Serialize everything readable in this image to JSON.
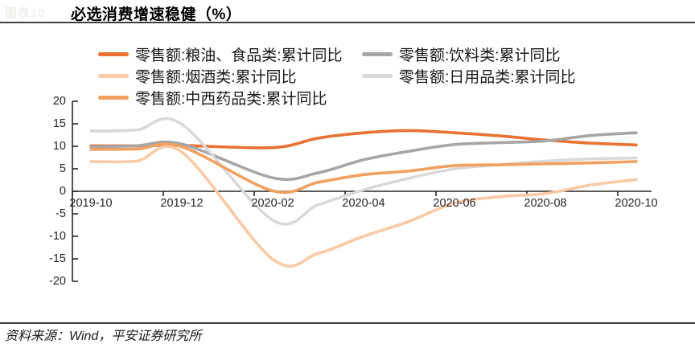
{
  "page": {
    "faint_caption": "图表10",
    "title": "必选消费增速稳健（%）",
    "source": "资料来源：Wind，平安证券研究所"
  },
  "chart_data": {
    "type": "line",
    "title": "必选消费增速稳健（%）",
    "x": [
      "2019-10",
      "2019-11",
      "2019-12",
      "2020-01",
      "2020-02",
      "2020-03",
      "2020-04",
      "2020-05",
      "2020-06",
      "2020-07",
      "2020-08",
      "2020-09",
      "2020-10"
    ],
    "xtick_labels": [
      "2019-10",
      "2019-12",
      "2020-02",
      "2020-04",
      "2020-06",
      "2020-08",
      "2020-10"
    ],
    "ytick_labels": [
      "20",
      "15",
      "10",
      "5",
      "0",
      "-5",
      "-10",
      "-15",
      "-20"
    ],
    "ylim": [
      -20,
      20
    ],
    "ytick_step": 5,
    "grid": false,
    "legend_position": "top",
    "line_smoothing": true,
    "axis_color": "#262626",
    "note": "2020-01 has no data point (Jan-Feb combined in cumulative YoY); line connects 2019-12 to 2020-02",
    "series": [
      {
        "name": "零售额:粮油、食品类:累计同比",
        "color": "#E97132",
        "values": [
          10.1,
          10.1,
          10.2,
          null,
          9.7,
          11.8,
          13.0,
          13.5,
          13.0,
          12.3,
          11.4,
          10.7,
          10.3
        ]
      },
      {
        "name": "零售额:饮料类:累计同比",
        "color": "#A6A6A6",
        "values": [
          9.9,
          10.1,
          10.5,
          null,
          3.0,
          4.1,
          7.0,
          8.9,
          10.4,
          10.8,
          11.2,
          12.4,
          13.0
        ]
      },
      {
        "name": "零售额:烟酒类:累计同比",
        "color": "#FAC9A6",
        "values": [
          6.6,
          6.7,
          8.7,
          null,
          -15.1,
          -13.8,
          -10.0,
          -6.7,
          -2.6,
          -1.2,
          -0.5,
          1.4,
          2.6
        ]
      },
      {
        "name": "零售额:日用品类:累计同比",
        "color": "#D9D9D9",
        "values": [
          13.4,
          13.6,
          14.9,
          null,
          -6.4,
          -3.0,
          0.3,
          2.9,
          5.0,
          5.9,
          6.7,
          7.2,
          7.4
        ]
      },
      {
        "name": "零售额:中西药品类:累计同比",
        "color": "#F2A05F",
        "values": [
          9.3,
          9.4,
          9.9,
          null,
          0.1,
          2.0,
          3.7,
          4.5,
          5.7,
          5.9,
          6.1,
          6.3,
          6.6
        ]
      }
    ]
  }
}
